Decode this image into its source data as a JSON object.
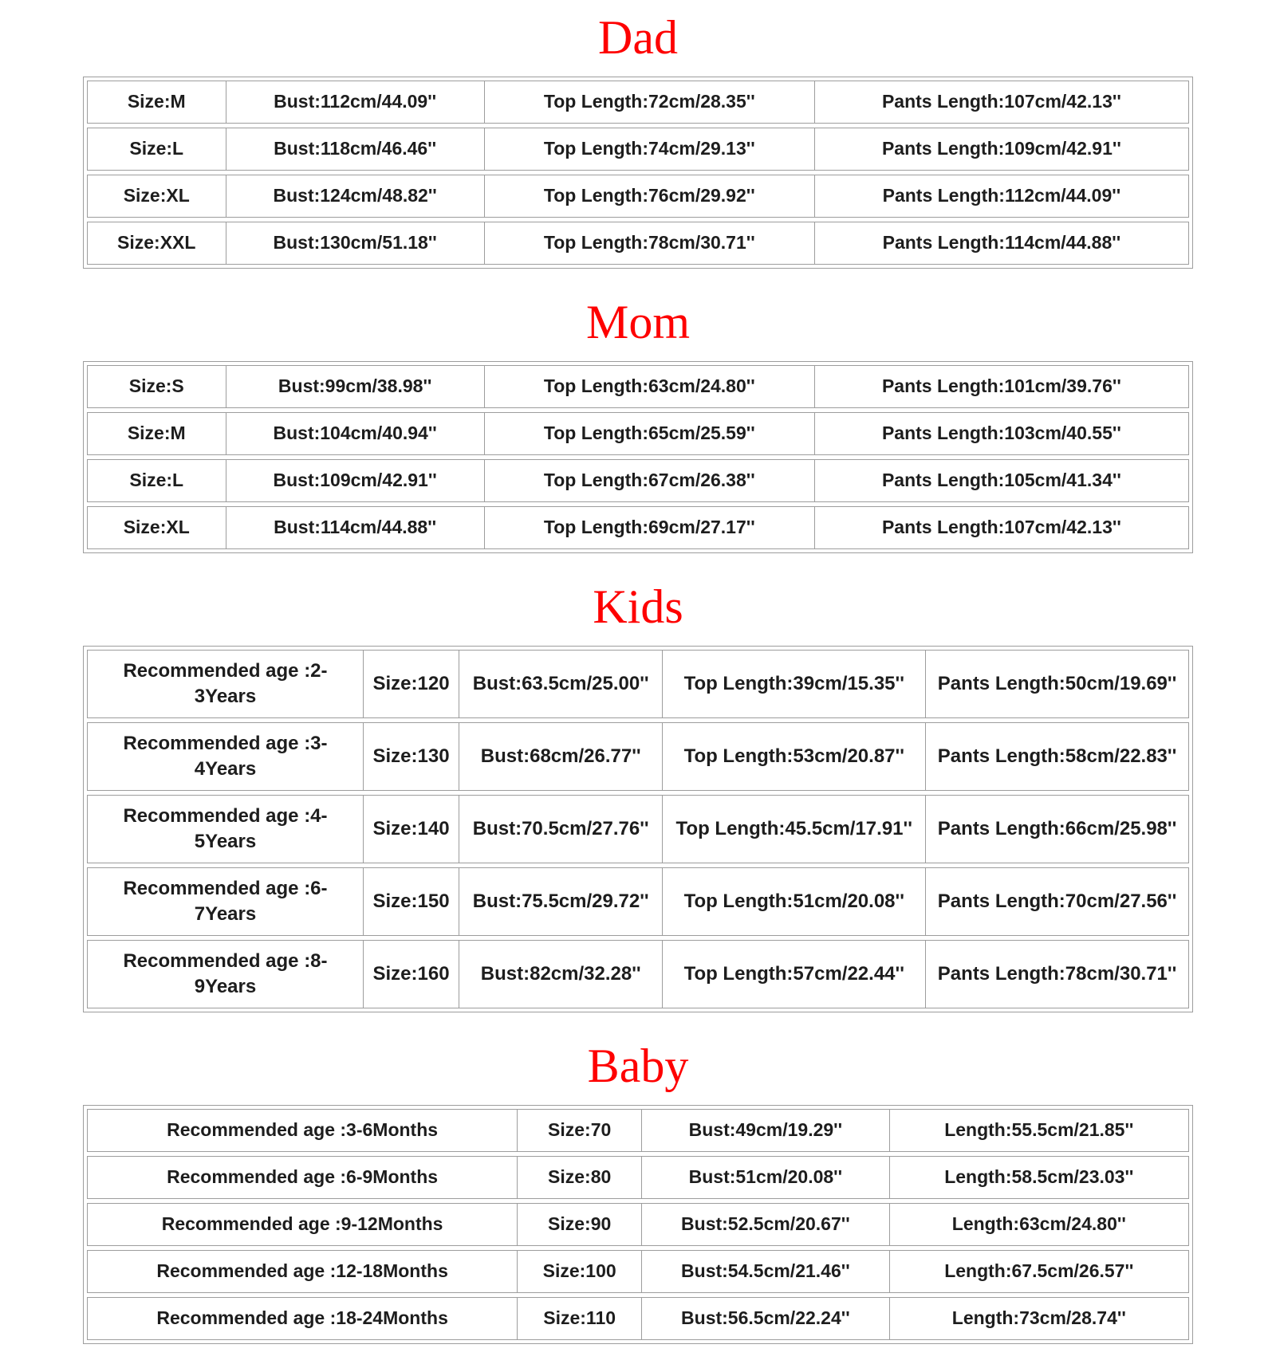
{
  "page": {
    "background": "#ffffff",
    "title_color": "#fe0000",
    "border_color": "#9d9d9d",
    "text_color": "#1d1d1d"
  },
  "sections": [
    {
      "id": "dad",
      "title": "Dad",
      "columns": [
        "Size",
        "Bust",
        "Top Length",
        "Pants Length"
      ],
      "rows": [
        [
          "Size:M",
          "Bust:112cm/44.09''",
          "Top Length:72cm/28.35''",
          "Pants Length:107cm/42.13''"
        ],
        [
          "Size:L",
          "Bust:118cm/46.46''",
          "Top Length:74cm/29.13''",
          "Pants Length:109cm/42.91''"
        ],
        [
          "Size:XL",
          "Bust:124cm/48.82''",
          "Top Length:76cm/29.92''",
          "Pants Length:112cm/44.09''"
        ],
        [
          "Size:XXL",
          "Bust:130cm/51.18''",
          "Top Length:78cm/30.71''",
          "Pants Length:114cm/44.88''"
        ]
      ]
    },
    {
      "id": "mom",
      "title": "Mom",
      "columns": [
        "Size",
        "Bust",
        "Top Length",
        "Pants Length"
      ],
      "rows": [
        [
          "Size:S",
          "Bust:99cm/38.98''",
          "Top Length:63cm/24.80''",
          "Pants Length:101cm/39.76''"
        ],
        [
          "Size:M",
          "Bust:104cm/40.94''",
          "Top Length:65cm/25.59''",
          "Pants Length:103cm/40.55''"
        ],
        [
          "Size:L",
          "Bust:109cm/42.91''",
          "Top Length:67cm/26.38''",
          "Pants Length:105cm/41.34''"
        ],
        [
          "Size:XL",
          "Bust:114cm/44.88''",
          "Top Length:69cm/27.17''",
          "Pants Length:107cm/42.13''"
        ]
      ]
    },
    {
      "id": "kids",
      "title": "Kids",
      "columns": [
        "Recommended age",
        "Size",
        "Bust",
        "Top Length",
        "Pants Length"
      ],
      "rows": [
        [
          "Recommended age :2-3Years",
          "Size:120",
          "Bust:63.5cm/25.00''",
          "Top Length:39cm/15.35''",
          "Pants Length:50cm/19.69''"
        ],
        [
          "Recommended age :3-4Years",
          "Size:130",
          "Bust:68cm/26.77''",
          "Top Length:53cm/20.87''",
          "Pants Length:58cm/22.83''"
        ],
        [
          "Recommended age :4-5Years",
          "Size:140",
          "Bust:70.5cm/27.76''",
          "Top Length:45.5cm/17.91''",
          "Pants Length:66cm/25.98''"
        ],
        [
          "Recommended age :6-7Years",
          "Size:150",
          "Bust:75.5cm/29.72''",
          "Top Length:51cm/20.08''",
          "Pants Length:70cm/27.56''"
        ],
        [
          "Recommended age :8-9Years",
          "Size:160",
          "Bust:82cm/32.28''",
          "Top Length:57cm/22.44''",
          "Pants Length:78cm/30.71''"
        ]
      ]
    },
    {
      "id": "baby",
      "title": "Baby",
      "columns": [
        "Recommended age",
        "Size",
        "Bust",
        "Length"
      ],
      "rows": [
        [
          "Recommended age :3-6Months",
          "Size:70",
          "Bust:49cm/19.29''",
          "Length:55.5cm/21.85''"
        ],
        [
          "Recommended age :6-9Months",
          "Size:80",
          "Bust:51cm/20.08''",
          "Length:58.5cm/23.03''"
        ],
        [
          "Recommended age :9-12Months",
          "Size:90",
          "Bust:52.5cm/20.67''",
          "Length:63cm/24.80''"
        ],
        [
          "Recommended age :12-18Months",
          "Size:100",
          "Bust:54.5cm/21.46''",
          "Length:67.5cm/26.57''"
        ],
        [
          "Recommended age :18-24Months",
          "Size:110",
          "Bust:56.5cm/22.24''",
          "Length:73cm/28.74''"
        ]
      ]
    }
  ]
}
